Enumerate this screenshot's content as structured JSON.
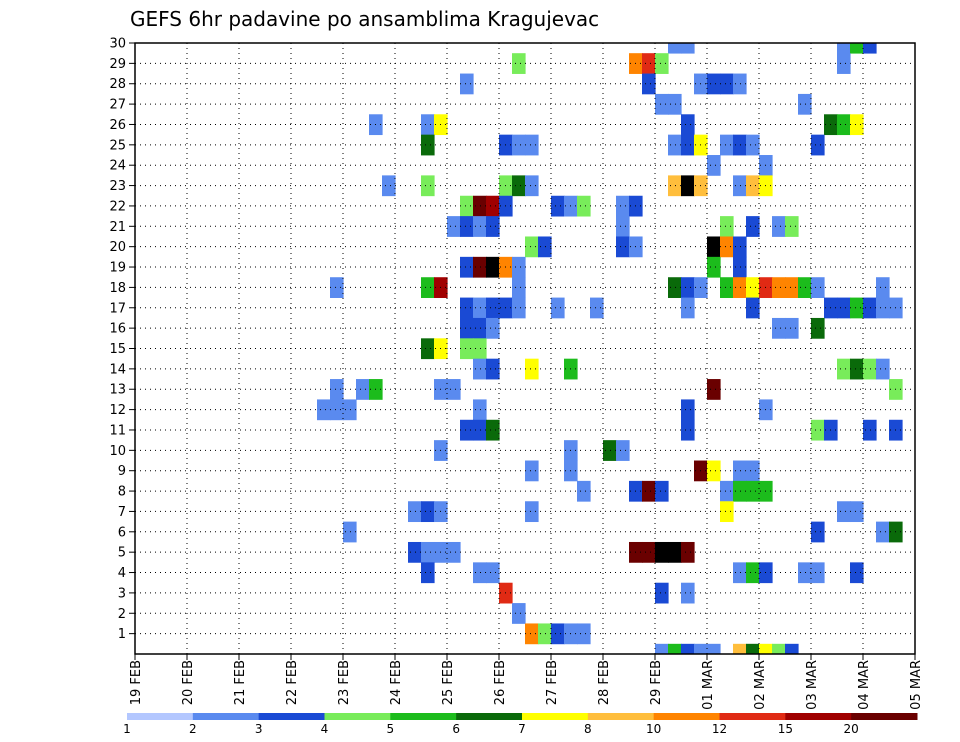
{
  "chart_data": {
    "type": "heatmap",
    "title": "GEFS 6hr padavine po ansamblima Kragujevac",
    "x_tick_labels": [
      "19 FEB",
      "20 FEB",
      "21 FEB",
      "22 FEB",
      "23 FEB",
      "24 FEB",
      "25 FEB",
      "26 FEB",
      "27 FEB",
      "28 FEB",
      "29 FEB",
      "01 MAR",
      "02 MAR",
      "03 MAR",
      "04 MAR",
      "05 MAR"
    ],
    "x_ticks_days": [
      0,
      1,
      2,
      3,
      4,
      5,
      6,
      7,
      8,
      9,
      10,
      11,
      12,
      13,
      14,
      15
    ],
    "x_range_days": [
      0,
      15
    ],
    "time_step_hours": 6,
    "y_label_values": [
      1,
      2,
      3,
      4,
      5,
      6,
      7,
      8,
      9,
      10,
      11,
      12,
      13,
      14,
      15,
      16,
      17,
      18,
      19,
      20,
      21,
      22,
      23,
      24,
      25,
      26,
      27,
      28,
      29,
      30
    ],
    "y_range": [
      0,
      30
    ],
    "grid": true,
    "colorbar": {
      "labels": [
        "1",
        "2",
        "3",
        "4",
        "5",
        "6",
        "7",
        "8",
        "10",
        "12",
        "15",
        "20"
      ],
      "colors": [
        "#b3c7ff",
        "#5a8aef",
        "#1a4ad4",
        "#78ec5a",
        "#1cbc1c",
        "#0a6a0a",
        "#ffff00",
        "#ffbe3c",
        "#ff8400",
        "#e02a14",
        "#a00000",
        "#6a0000"
      ]
    },
    "cells": [
      [
        30,
        28.75,
        1
      ],
      [
        30,
        29.0,
        1
      ],
      [
        30,
        32.0,
        1
      ],
      [
        30,
        32.25,
        4
      ],
      [
        30,
        32.5,
        2
      ],
      [
        29,
        25.75,
        3
      ],
      [
        29,
        28.0,
        8
      ],
      [
        29,
        28.25,
        9
      ],
      [
        29,
        28.5,
        3
      ],
      [
        29,
        32.0,
        1
      ],
      [
        28,
        24.75,
        1
      ],
      [
        28,
        28.25,
        2
      ],
      [
        28,
        29.25,
        1
      ],
      [
        28,
        29.5,
        2
      ],
      [
        28,
        29.75,
        2
      ],
      [
        28,
        30.0,
        1
      ],
      [
        27,
        28.5,
        1
      ],
      [
        27,
        28.75,
        1
      ],
      [
        27,
        31.25,
        1
      ],
      [
        26,
        23.0,
        1
      ],
      [
        26,
        24.0,
        1
      ],
      [
        26,
        24.25,
        6
      ],
      [
        26,
        29.0,
        2
      ],
      [
        26,
        31.75,
        5
      ],
      [
        26,
        32.0,
        4
      ],
      [
        26,
        32.25,
        6
      ],
      [
        25,
        24.0,
        5
      ],
      [
        25,
        25.5,
        2
      ],
      [
        25,
        25.75,
        1
      ],
      [
        25,
        26.0,
        1
      ],
      [
        25,
        28.75,
        1
      ],
      [
        25,
        29.0,
        2
      ],
      [
        25,
        29.25,
        6
      ],
      [
        25,
        29.75,
        1
      ],
      [
        25,
        30.0,
        2
      ],
      [
        25,
        30.25,
        1
      ],
      [
        25,
        31.5,
        2
      ],
      [
        24,
        29.5,
        1
      ],
      [
        24,
        30.5,
        1
      ],
      [
        23,
        23.25,
        1
      ],
      [
        23,
        24.0,
        3
      ],
      [
        23,
        25.5,
        3
      ],
      [
        23,
        25.75,
        5
      ],
      [
        23,
        26.0,
        1
      ],
      [
        23,
        28.75,
        7
      ],
      [
        23,
        29.0,
        12
      ],
      [
        23,
        29.25,
        7
      ],
      [
        23,
        30.0,
        1
      ],
      [
        23,
        30.25,
        7
      ],
      [
        23,
        30.5,
        6
      ],
      [
        22,
        24.75,
        3
      ],
      [
        22,
        25.0,
        11
      ],
      [
        22,
        25.25,
        10
      ],
      [
        22,
        25.5,
        2
      ],
      [
        22,
        26.5,
        2
      ],
      [
        22,
        26.75,
        1
      ],
      [
        22,
        27.0,
        3
      ],
      [
        22,
        27.75,
        1
      ],
      [
        22,
        28.0,
        2
      ],
      [
        21,
        24.5,
        1
      ],
      [
        21,
        24.75,
        2
      ],
      [
        21,
        25.0,
        1
      ],
      [
        21,
        25.25,
        2
      ],
      [
        21,
        27.75,
        1
      ],
      [
        21,
        29.75,
        3
      ],
      [
        21,
        30.25,
        2
      ],
      [
        21,
        30.75,
        1
      ],
      [
        21,
        31.0,
        3
      ],
      [
        20,
        26.0,
        3
      ],
      [
        20,
        26.25,
        2
      ],
      [
        20,
        27.75,
        2
      ],
      [
        20,
        28.0,
        1
      ],
      [
        20,
        29.5,
        12
      ],
      [
        20,
        29.75,
        8
      ],
      [
        20,
        30.0,
        2
      ],
      [
        19,
        24.75,
        2
      ],
      [
        19,
        25.0,
        11
      ],
      [
        19,
        25.25,
        12
      ],
      [
        19,
        25.5,
        8
      ],
      [
        19,
        25.75,
        1
      ],
      [
        19,
        29.5,
        4
      ],
      [
        19,
        30.0,
        2
      ],
      [
        18,
        22.25,
        1
      ],
      [
        18,
        24.0,
        4
      ],
      [
        18,
        24.25,
        10
      ],
      [
        18,
        25.75,
        1
      ],
      [
        18,
        28.75,
        5
      ],
      [
        18,
        29.0,
        2
      ],
      [
        18,
        29.25,
        1
      ],
      [
        18,
        29.75,
        4
      ],
      [
        18,
        30.0,
        8
      ],
      [
        18,
        30.25,
        6
      ],
      [
        18,
        30.5,
        9
      ],
      [
        18,
        30.75,
        8
      ],
      [
        18,
        31.0,
        8
      ],
      [
        18,
        31.25,
        4
      ],
      [
        18,
        31.5,
        1
      ],
      [
        18,
        32.75,
        1
      ],
      [
        17,
        24.75,
        2
      ],
      [
        17,
        25.0,
        1
      ],
      [
        17,
        25.25,
        2
      ],
      [
        17,
        25.5,
        2
      ],
      [
        17,
        25.75,
        1
      ],
      [
        17,
        26.5,
        1
      ],
      [
        17,
        27.25,
        1
      ],
      [
        17,
        29.0,
        1
      ],
      [
        17,
        30.25,
        2
      ],
      [
        17,
        31.75,
        2
      ],
      [
        17,
        32.0,
        2
      ],
      [
        17,
        32.25,
        4
      ],
      [
        17,
        32.5,
        2
      ],
      [
        17,
        32.75,
        1
      ],
      [
        17,
        33.0,
        1
      ],
      [
        16,
        24.75,
        2
      ],
      [
        16,
        25.0,
        2
      ],
      [
        16,
        25.25,
        1
      ],
      [
        16,
        30.75,
        1
      ],
      [
        16,
        31.0,
        1
      ],
      [
        16,
        31.5,
        5
      ],
      [
        15,
        24.0,
        5
      ],
      [
        15,
        24.25,
        6
      ],
      [
        15,
        24.75,
        3
      ],
      [
        15,
        25.0,
        3
      ],
      [
        14,
        25.0,
        1
      ],
      [
        14,
        25.25,
        2
      ],
      [
        14,
        26.0,
        6
      ],
      [
        14,
        26.75,
        4
      ],
      [
        14,
        32.0,
        3
      ],
      [
        14,
        32.25,
        5
      ],
      [
        14,
        32.5,
        3
      ],
      [
        14,
        32.75,
        1
      ],
      [
        13,
        22.25,
        1
      ],
      [
        13,
        22.75,
        1
      ],
      [
        13,
        23.0,
        4
      ],
      [
        13,
        24.25,
        1
      ],
      [
        13,
        24.5,
        1
      ],
      [
        13,
        29.5,
        11
      ],
      [
        13,
        33.0,
        3
      ],
      [
        12,
        22.0,
        1
      ],
      [
        12,
        22.25,
        1
      ],
      [
        12,
        22.5,
        1
      ],
      [
        12,
        25.0,
        1
      ],
      [
        12,
        29.0,
        2
      ],
      [
        12,
        30.5,
        1
      ],
      [
        11,
        24.75,
        2
      ],
      [
        11,
        25.0,
        2
      ],
      [
        11,
        25.25,
        5
      ],
      [
        11,
        29.0,
        2
      ],
      [
        11,
        31.5,
        3
      ],
      [
        11,
        31.75,
        2
      ],
      [
        11,
        32.5,
        2
      ],
      [
        11,
        33.0,
        2
      ],
      [
        10,
        24.25,
        1
      ],
      [
        10,
        26.75,
        1
      ],
      [
        10,
        27.5,
        5
      ],
      [
        10,
        27.75,
        1
      ],
      [
        9,
        26.0,
        1
      ],
      [
        9,
        26.75,
        1
      ],
      [
        9,
        29.25,
        11
      ],
      [
        9,
        29.5,
        6
      ],
      [
        9,
        30.0,
        1
      ],
      [
        9,
        30.25,
        1
      ],
      [
        8,
        27.0,
        1
      ],
      [
        8,
        28.0,
        2
      ],
      [
        8,
        28.25,
        11
      ],
      [
        8,
        28.5,
        2
      ],
      [
        8,
        29.75,
        1
      ],
      [
        8,
        30.0,
        4
      ],
      [
        8,
        30.25,
        4
      ],
      [
        8,
        30.5,
        4
      ],
      [
        7,
        23.75,
        1
      ],
      [
        7,
        24.0,
        2
      ],
      [
        7,
        24.25,
        1
      ],
      [
        7,
        26.0,
        1
      ],
      [
        7,
        29.75,
        6
      ],
      [
        7,
        32.0,
        1
      ],
      [
        7,
        32.25,
        1
      ],
      [
        6,
        22.5,
        1
      ],
      [
        6,
        31.5,
        2
      ],
      [
        6,
        32.75,
        1
      ],
      [
        6,
        33.0,
        5
      ],
      [
        5,
        23.75,
        2
      ],
      [
        5,
        24.0,
        1
      ],
      [
        5,
        24.25,
        1
      ],
      [
        5,
        24.5,
        1
      ],
      [
        5,
        28.0,
        11
      ],
      [
        5,
        28.25,
        11
      ],
      [
        5,
        28.5,
        12
      ],
      [
        5,
        28.75,
        12
      ],
      [
        5,
        29.0,
        11
      ],
      [
        4,
        24.0,
        2
      ],
      [
        4,
        25.0,
        1
      ],
      [
        4,
        25.25,
        1
      ],
      [
        4,
        30.0,
        1
      ],
      [
        4,
        30.25,
        4
      ],
      [
        4,
        30.5,
        2
      ],
      [
        4,
        31.25,
        1
      ],
      [
        4,
        31.5,
        1
      ],
      [
        4,
        32.25,
        2
      ],
      [
        3,
        25.5,
        9
      ],
      [
        3,
        28.5,
        2
      ],
      [
        3,
        29.0,
        1
      ],
      [
        2,
        25.75,
        1
      ],
      [
        1,
        26.0,
        8
      ],
      [
        1,
        26.25,
        3
      ],
      [
        1,
        26.5,
        2
      ],
      [
        1,
        26.75,
        1
      ],
      [
        1,
        27.0,
        1
      ],
      [
        0,
        28.5,
        1
      ],
      [
        0,
        28.75,
        4
      ],
      [
        0,
        29.0,
        2
      ],
      [
        0,
        29.25,
        1
      ],
      [
        0,
        29.5,
        1
      ],
      [
        0,
        30.0,
        7
      ],
      [
        0,
        30.25,
        5
      ],
      [
        0,
        30.5,
        6
      ],
      [
        0,
        30.75,
        3
      ],
      [
        0,
        31.0,
        2
      ]
    ]
  }
}
